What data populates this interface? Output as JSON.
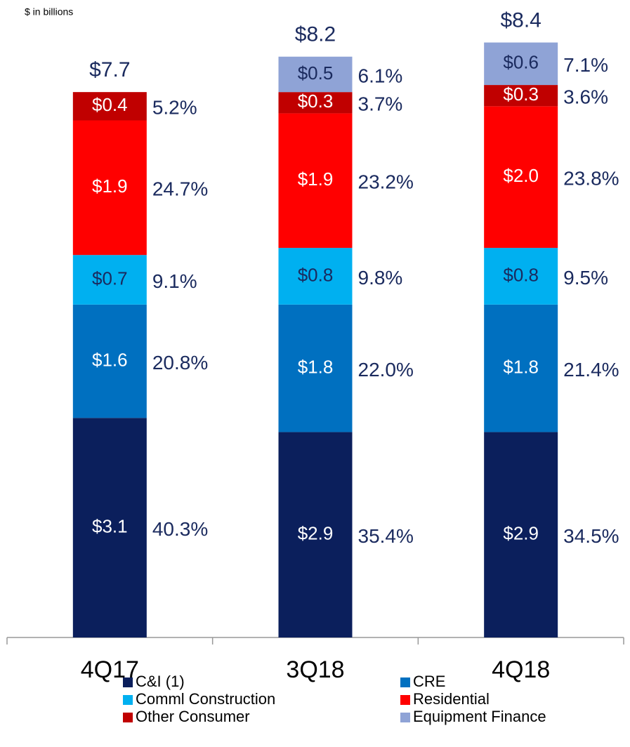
{
  "chart_data": {
    "type": "stacked_bar",
    "subtitle": "$ in billions",
    "categories": [
      "4Q17",
      "3Q18",
      "4Q18"
    ],
    "ylim": [
      0,
      9
    ],
    "series": [
      {
        "name": "C&I (1)",
        "color": "#0b1f5c",
        "values": [
          3.1,
          2.9,
          2.9
        ],
        "value_labels": [
          "$3.1",
          "$2.9",
          "$2.9"
        ],
        "share_labels": [
          "40.3%",
          "35.4%",
          "34.5%"
        ]
      },
      {
        "name": "CRE",
        "color": "#0070c0",
        "values": [
          1.6,
          1.8,
          1.8
        ],
        "value_labels": [
          "$1.6",
          "$1.8",
          "$1.8"
        ],
        "share_labels": [
          "20.8%",
          "22.0%",
          "21.4%"
        ]
      },
      {
        "name": "Comml Construction",
        "color": "#00b0f0",
        "values": [
          0.7,
          0.8,
          0.8
        ],
        "value_labels": [
          "$0.7",
          "$0.8",
          "$0.8"
        ],
        "share_labels": [
          "9.1%",
          "9.8%",
          "9.5%"
        ]
      },
      {
        "name": "Residential",
        "color": "#ff0000",
        "values": [
          1.9,
          1.9,
          2.0
        ],
        "value_labels": [
          "$1.9",
          "$1.9",
          "$2.0"
        ],
        "share_labels": [
          "24.7%",
          "23.2%",
          "23.8%"
        ]
      },
      {
        "name": "Other Consumer",
        "color": "#c00000",
        "values": [
          0.4,
          0.3,
          0.3
        ],
        "value_labels": [
          "$0.4",
          "$0.3",
          "$0.3"
        ],
        "share_labels": [
          "5.2%",
          "3.7%",
          "3.6%"
        ]
      },
      {
        "name": "Equipment Finance",
        "color": "#8fa3d6",
        "values": [
          null,
          0.5,
          0.6
        ],
        "value_labels": [
          null,
          "$0.5",
          "$0.6"
        ],
        "share_labels": [
          null,
          "6.1%",
          "7.1%"
        ]
      }
    ],
    "totals": [
      7.7,
      8.2,
      8.4
    ],
    "total_labels": [
      "$7.7",
      "$8.2",
      "$8.4"
    ],
    "legend": "bottom"
  }
}
